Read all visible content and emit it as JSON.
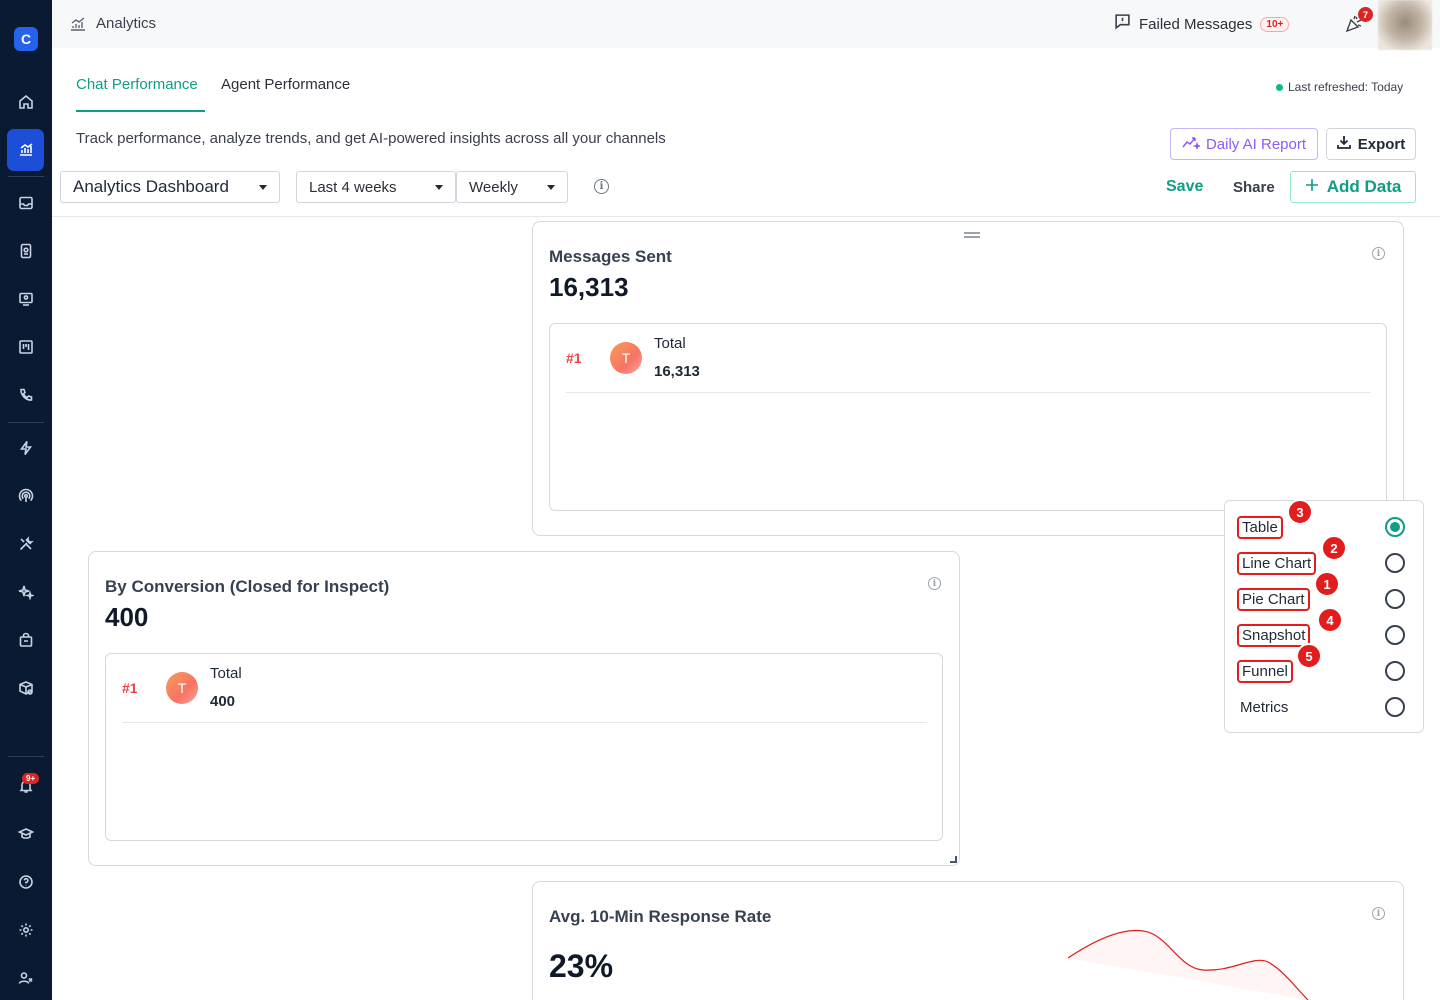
{
  "topbar": {
    "title": "Analytics",
    "failed_messages_label": "Failed Messages",
    "failed_messages_count": "10+",
    "notification_count": "7"
  },
  "sidebar": {
    "logo_letter": "C",
    "notification_badge": "9+",
    "icons": [
      "home-icon",
      "analytics-icon",
      "inbox-icon",
      "contacts-icon",
      "monitor-icon",
      "board-icon",
      "phone-icon",
      "bolt-icon",
      "broadcast-icon",
      "tools-icon",
      "sparkles-icon",
      "bag-icon",
      "package-icon",
      "bell-icon",
      "graduation-icon",
      "help-icon",
      "settings-icon",
      "users-icon"
    ]
  },
  "tabs": [
    {
      "label": "Chat Performance",
      "active": true
    },
    {
      "label": "Agent Performance",
      "active": false
    }
  ],
  "last_refreshed": "Last refreshed: Today",
  "subtitle": "Track performance, analyze trends, and get AI-powered insights across all your channels",
  "buttons": {
    "daily_ai_report": "Daily AI Report",
    "export": "Export",
    "save": "Save",
    "share": "Share",
    "add_data": "Add Data"
  },
  "filters": {
    "dashboard": "Analytics Dashboard",
    "range": "Last 4 weeks",
    "frequency": "Weekly"
  },
  "cards": {
    "messages_sent": {
      "title": "Messages Sent",
      "value": "16,313",
      "row": {
        "rank": "#1",
        "avatar": "T",
        "label": "Total",
        "value": "16,313"
      }
    },
    "by_conversion": {
      "title": "By Conversion (Closed for Inspect)",
      "value": "400",
      "row": {
        "rank": "#1",
        "avatar": "T",
        "label": "Total",
        "value": "400"
      }
    },
    "response_rate": {
      "title": "Avg. 10-Min Response Rate",
      "value": "23%"
    }
  },
  "chart_data": {
    "type": "line",
    "title": "",
    "x": [],
    "series": [
      {
        "values": []
      }
    ],
    "note_color": "#e11d1d"
  },
  "view_menu": {
    "items": [
      {
        "label": "Table",
        "selected": true,
        "highlighted": true,
        "badge": "3"
      },
      {
        "label": "Line Chart",
        "selected": false,
        "highlighted": true,
        "badge": "2"
      },
      {
        "label": "Pie Chart",
        "selected": false,
        "highlighted": true,
        "badge": "1"
      },
      {
        "label": "Snapshot",
        "selected": false,
        "highlighted": true,
        "badge": "4"
      },
      {
        "label": "Funnel",
        "selected": false,
        "highlighted": true,
        "badge": "5"
      },
      {
        "label": "Metrics",
        "selected": false,
        "highlighted": false,
        "badge": ""
      }
    ]
  },
  "colors": {
    "accent": "#0f9d84",
    "sidebar": "#0b1a33",
    "active_nav": "#1d4ed8",
    "ai_purple": "#8b5cf6",
    "danger": "#e11d1d"
  }
}
